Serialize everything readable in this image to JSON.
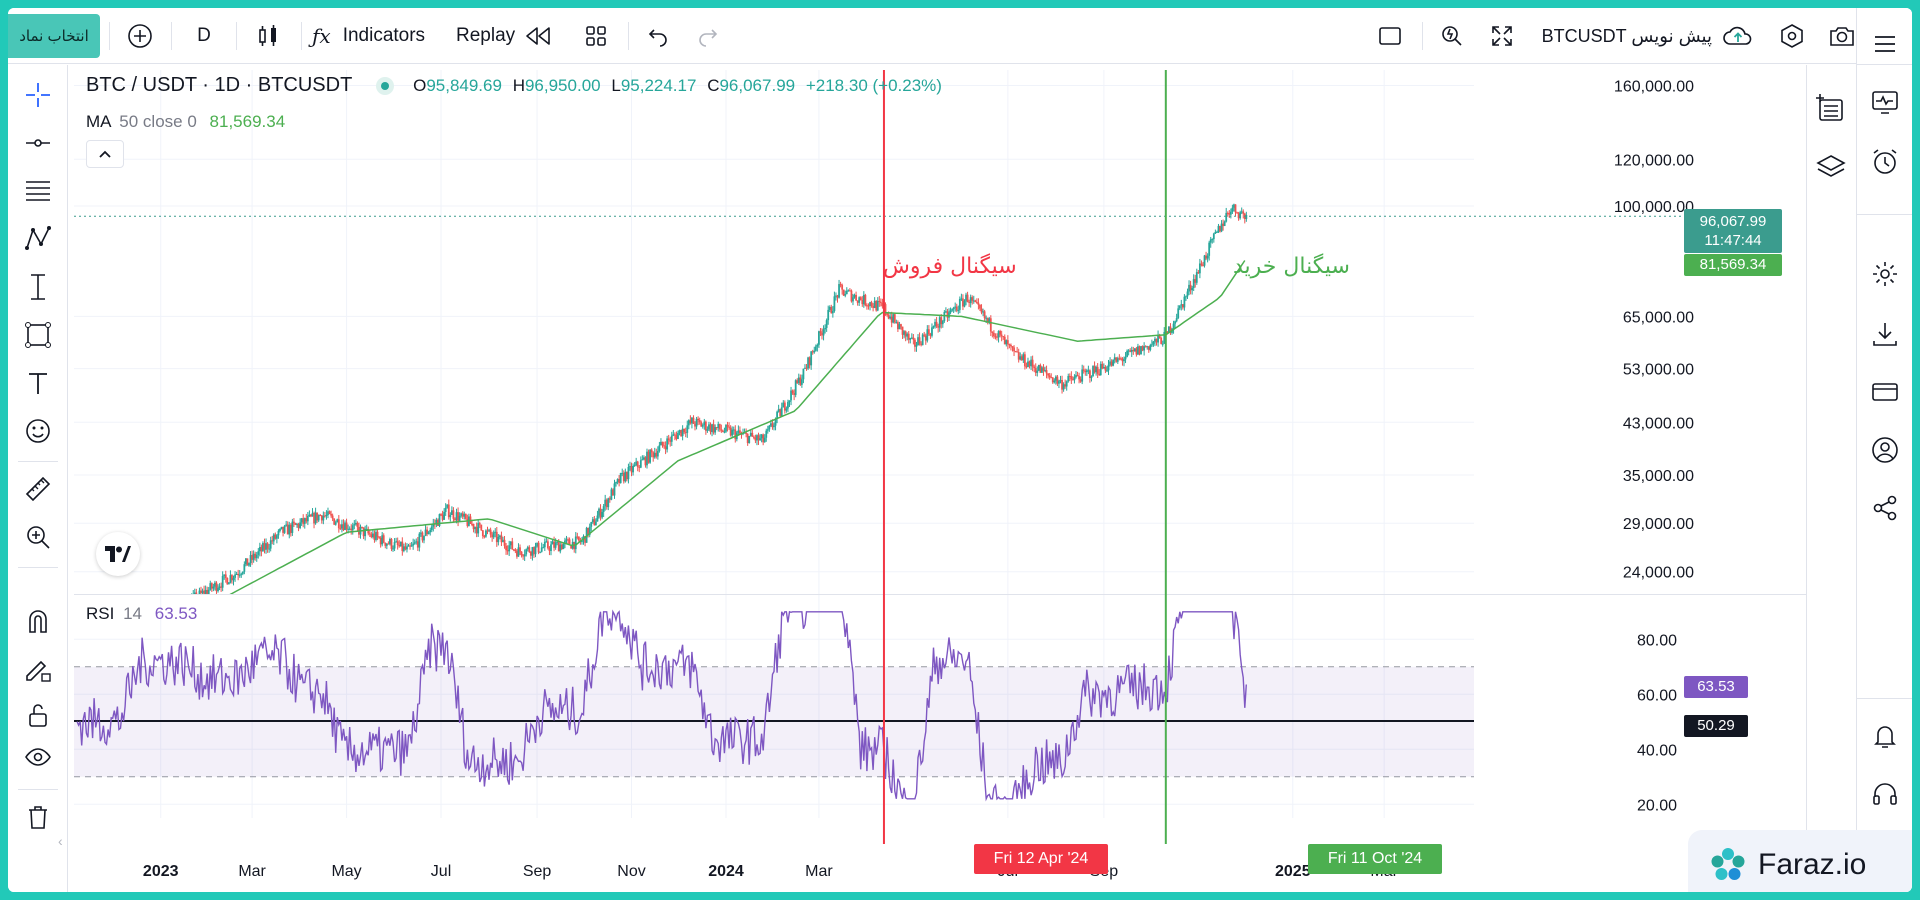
{
  "toolbar": {
    "symbol_select": "انتخاب نماد",
    "interval": "D",
    "indicators": "Indicators",
    "replay": "Replay",
    "symbol_title": "BTCUSDT پیش نویس"
  },
  "legend": {
    "pair": "BTC / USDT · 1D · BTCUSDT",
    "o_label": "O",
    "o_value": "95,849.69",
    "h_label": "H",
    "h_value": "96,950.00",
    "l_label": "L",
    "l_value": "95,224.17",
    "c_label": "C",
    "c_value": "96,067.99",
    "change": "+218.30 (+0.23%)",
    "ma_name": "MA",
    "ma_params": "50 close 0",
    "ma_value": "81,569.34",
    "rsi_name": "RSI",
    "rsi_params": "14",
    "rsi_value": "63.53"
  },
  "annotations": {
    "sell_signal": "سیگنال فروش",
    "buy_signal": "سیگنال خرید"
  },
  "price_axis": [
    "160,000.00",
    "120,000.00",
    "100,000.00",
    "65,000.00",
    "53,000.00",
    "43,000.00",
    "35,000.00",
    "29,000.00",
    "24,000.00"
  ],
  "rsi_axis": [
    "80.00",
    "60.00",
    "40.00",
    "20.00"
  ],
  "time_axis": [
    "2023",
    "Mar",
    "May",
    "Jul",
    "Sep",
    "Nov",
    "2024",
    "Mar",
    "Jul",
    "Sep",
    "2025",
    "Mar"
  ],
  "price_tags": {
    "last_price": "96,067.99",
    "countdown": "11:47:44",
    "ma_tag": "81,569.34",
    "rsi_tag": "63.53",
    "rsi_level_tag": "50.29"
  },
  "date_tags": {
    "sell_date": "Fri 12 Apr '24",
    "buy_date": "Fri 11 Oct '24"
  },
  "brand": {
    "name": "Faraz.io"
  },
  "colors": {
    "sell_line": "#f23645",
    "buy_line": "#4caf50",
    "ma_line": "#4caf50",
    "rsi_line": "#7e57c2",
    "candle_up": "#26a69a",
    "candle_down": "#ef5350",
    "last_price_tag": "#3b9c8e"
  },
  "chart_data": {
    "type": "candlestick",
    "interval": "1D",
    "x_range": [
      "2022-11",
      "2025-04"
    ],
    "y_scale": "log",
    "y_range": [
      22000,
      170000
    ],
    "price_path": [
      {
        "date": "2022-12-05",
        "close": 17000
      },
      {
        "date": "2023-01-15",
        "close": 21000
      },
      {
        "date": "2023-02-20",
        "close": 24000
      },
      {
        "date": "2023-03-20",
        "close": 28000
      },
      {
        "date": "2023-04-15",
        "close": 30000
      },
      {
        "date": "2023-06-10",
        "close": 26000
      },
      {
        "date": "2023-07-05",
        "close": 30500
      },
      {
        "date": "2023-08-20",
        "close": 26000
      },
      {
        "date": "2023-09-30",
        "close": 27000
      },
      {
        "date": "2023-10-25",
        "close": 34500
      },
      {
        "date": "2023-12-10",
        "close": 43000
      },
      {
        "date": "2024-01-25",
        "close": 40000
      },
      {
        "date": "2024-02-20",
        "close": 52000
      },
      {
        "date": "2024-03-14",
        "close": 72000
      },
      {
        "date": "2024-04-12",
        "close": 67000
      },
      {
        "date": "2024-05-01",
        "close": 58000
      },
      {
        "date": "2024-06-05",
        "close": 70000
      },
      {
        "date": "2024-07-05",
        "close": 56000
      },
      {
        "date": "2024-08-05",
        "close": 50000
      },
      {
        "date": "2024-09-06",
        "close": 54000
      },
      {
        "date": "2024-10-11",
        "close": 60000
      },
      {
        "date": "2024-11-12",
        "close": 89000
      },
      {
        "date": "2024-11-22",
        "close": 99500
      },
      {
        "date": "2024-12-02",
        "close": 96068
      }
    ],
    "ma50_path": [
      {
        "date": "2023-02-01",
        "value": 21000
      },
      {
        "date": "2023-05-01",
        "value": 28000
      },
      {
        "date": "2023-08-01",
        "value": 29500
      },
      {
        "date": "2023-09-25",
        "value": 26500
      },
      {
        "date": "2023-12-01",
        "value": 37000
      },
      {
        "date": "2024-02-15",
        "value": 45000
      },
      {
        "date": "2024-04-10",
        "value": 66000
      },
      {
        "date": "2024-06-01",
        "value": 65000
      },
      {
        "date": "2024-08-15",
        "value": 59000
      },
      {
        "date": "2024-10-11",
        "value": 60500
      },
      {
        "date": "2024-11-15",
        "value": 70000
      },
      {
        "date": "2024-12-02",
        "value": 81569.34
      }
    ],
    "rsi": {
      "period": 14,
      "upper_band": 70,
      "lower_band": 30,
      "level_line": 50.29,
      "last": 63.53,
      "y_range": [
        15,
        95
      ]
    },
    "markers": [
      {
        "label": "Fri 12 Apr '24",
        "date": "2024-04-12",
        "annotation": "سیگنال فروش"
      },
      {
        "label": "Fri 11 Oct '24",
        "date": "2024-10-11",
        "annotation": "سیگنال خرید"
      }
    ]
  }
}
